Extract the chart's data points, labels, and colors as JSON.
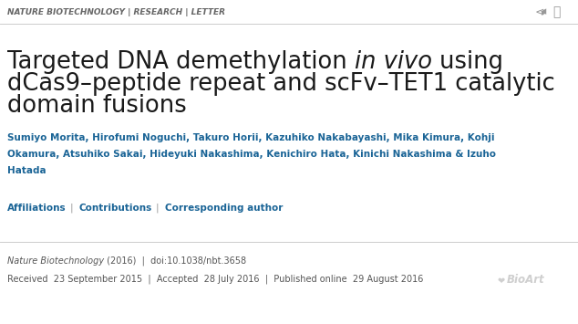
{
  "bg_color": "#ffffff",
  "header_text": "NATURE BIOTECHNOLOGY | RESEARCH | LETTER",
  "header_color": "#666666",
  "header_fontsize": 6.5,
  "header_fontstyle": "italic",
  "title_line1_normal": "Targeted DNA demethylation ",
  "title_line1_italic": "in vivo",
  "title_line1_after": " using",
  "title_line2": "dCas9–peptide repeat and scFv–TET1 catalytic",
  "title_line3": "domain fusions",
  "title_color": "#1a1a1a",
  "title_fontsize": 18.5,
  "authors_line1": "Sumiyo Morita, Hirofumi Noguchi, Takuro Horii, Kazuhiko Nakabayashi, Mika Kimura, Kohji",
  "authors_line2": "Okamura, Atsuhiko Sakai, Hideyuki Nakashima, Kenichiro Hata, Kinichi Nakashima & Izuho",
  "authors_line3": "Hatada",
  "authors_color": "#1a6496",
  "authors_fontsize": 7.5,
  "affiliations_text": "Affiliations",
  "contributions_text": "Contributions",
  "corresponding_text": "Corresponding author",
  "links_color": "#1a6496",
  "links_fontsize": 7.5,
  "journal_italic": "Nature Biotechnology",
  "journal_normal": " (2016)  |  doi:10.1038/nbt.3658",
  "journal_color": "#555555",
  "journal_fontsize": 7.0,
  "received_text": "Received  23 September 2015  |  Accepted  28 July 2016  |  Published online  29 August 2016",
  "received_color": "#555555",
  "received_fontsize": 7.0,
  "separator_color": "#cccccc",
  "bioart_color": "#bbbbbb",
  "bioart_fontsize": 8.5,
  "fig_width": 6.34,
  "fig_height": 3.55,
  "dpi": 100
}
